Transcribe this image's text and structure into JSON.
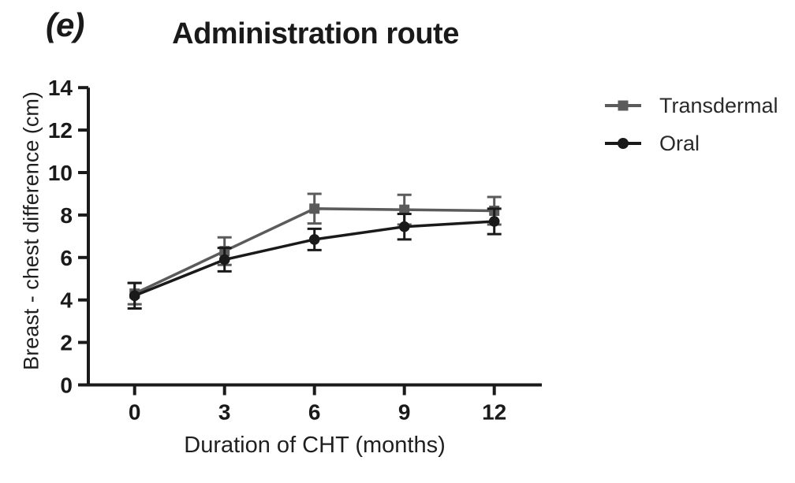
{
  "panel_label": "(e)",
  "colors": {
    "transdermal": "#5b5b5b",
    "oral": "#1a1a1a",
    "axis": "#1a1a1a",
    "tick_text": "#1a1a1a",
    "background": "#ffffff"
  },
  "chart_data": {
    "type": "line",
    "title": "Administration route",
    "xlabel": "Duration of CHT (months)",
    "ylabel": "Breast - chest difference (cm)",
    "x": [
      0,
      3,
      6,
      9,
      12
    ],
    "x_ticks": [
      "0",
      "3",
      "6",
      "9",
      "12"
    ],
    "y_ticks": [
      "0",
      "2",
      "4",
      "6",
      "8",
      "10",
      "12",
      "14"
    ],
    "y_tick_values": [
      0,
      2,
      4,
      6,
      8,
      10,
      12,
      14
    ],
    "ylim": [
      0,
      14
    ],
    "xlim": [
      0,
      12
    ],
    "grid": false,
    "legend_position": "right",
    "error_bars": true,
    "series": [
      {
        "name": "Transdermal",
        "marker": "square",
        "color": "#5b5b5b",
        "values": [
          4.3,
          6.3,
          8.3,
          8.25,
          8.2
        ],
        "errors": [
          0.5,
          0.65,
          0.7,
          0.7,
          0.65
        ]
      },
      {
        "name": "Oral",
        "marker": "circle",
        "color": "#1a1a1a",
        "values": [
          4.2,
          5.9,
          6.85,
          7.45,
          7.7
        ],
        "errors": [
          0.6,
          0.55,
          0.5,
          0.6,
          0.6
        ]
      }
    ]
  }
}
